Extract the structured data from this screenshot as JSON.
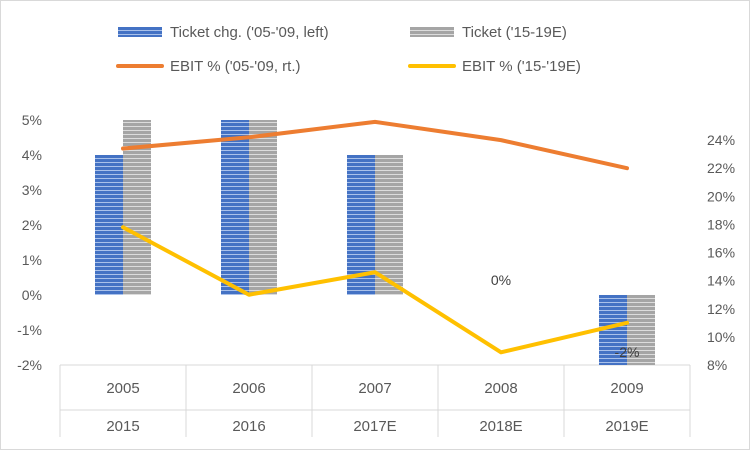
{
  "chart_data": {
    "type": "bar",
    "categories_primary": [
      "2005",
      "2006",
      "2007",
      "2008",
      "2009"
    ],
    "categories_secondary": [
      "2015",
      "2016",
      "2017E",
      "2018E",
      "2019E"
    ],
    "series": [
      {
        "name": "Ticket chg. ('05-'09, left)",
        "type": "bar",
        "axis": "left",
        "color": "#4472c4",
        "values": [
          4,
          5,
          4,
          0,
          -2
        ]
      },
      {
        "name": "Ticket ('15-19E)",
        "type": "bar",
        "axis": "left",
        "color": "#a5a5a5",
        "values": [
          5,
          5,
          4,
          0,
          -2
        ]
      },
      {
        "name": "EBIT % ('05-'09, rt.)",
        "type": "line",
        "axis": "right",
        "color": "#ed7d31",
        "values": [
          23.4,
          24.2,
          25.3,
          24.0,
          22.0
        ]
      },
      {
        "name": "EBIT % ('15-'19E)",
        "type": "line",
        "axis": "right",
        "color": "#ffc000",
        "values": [
          17.8,
          13.0,
          14.6,
          8.9,
          11.0
        ]
      }
    ],
    "y_left": {
      "ticks": [
        "-2%",
        "-1%",
        "0%",
        "1%",
        "2%",
        "3%",
        "4%",
        "5%"
      ],
      "min": -2,
      "max": 5
    },
    "y_right": {
      "ticks": [
        "8%",
        "10%",
        "12%",
        "14%",
        "16%",
        "18%",
        "20%",
        "22%",
        "24%"
      ],
      "min": 8,
      "max": 26
    },
    "data_labels": [
      {
        "category_index": 3,
        "text": "0%"
      },
      {
        "category_index": 4,
        "text": "-2%"
      }
    ],
    "legend_position": "top",
    "grid": false
  }
}
